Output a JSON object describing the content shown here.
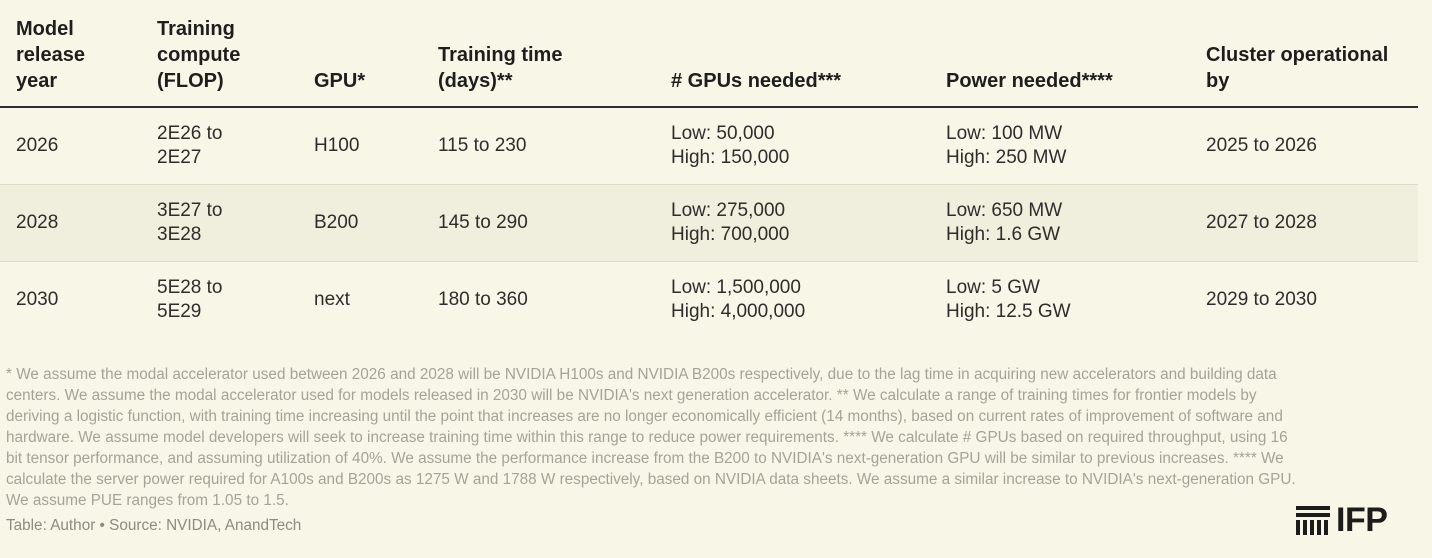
{
  "table": {
    "headers": [
      "Model\nrelease\nyear",
      "Training\ncompute\n(FLOP)",
      "GPU*",
      "Training time\n(days)**",
      "# GPUs needed***",
      "Power needed****",
      "Cluster operational\nby"
    ],
    "rows": [
      [
        "2026",
        "2E26 to\n2E27",
        "H100",
        "115 to 230",
        "Low: 50,000\nHigh: 150,000",
        "Low: 100 MW\nHigh: 250 MW",
        "2025 to 2026"
      ],
      [
        "2028",
        "3E27 to\n3E28",
        "B200",
        "145 to 290",
        "Low: 275,000\nHigh: 700,000",
        "Low: 650 MW\nHigh: 1.6 GW",
        "2027 to 2028"
      ],
      [
        "2030",
        "5E28 to\n5E29",
        "next",
        "180 to 360",
        "Low: 1,500,000\nHigh: 4,000,000",
        "Low: 5 GW\nHigh: 12.5 GW",
        "2029 to 2030"
      ]
    ]
  },
  "footnotes": "* We assume the modal accelerator used between 2026 and 2028 will be NVIDIA H100s and NVIDIA B200s respectively, due to the lag time in acquiring new accelerators and building data centers. We assume the modal accelerator used for models released in 2030 will be NVIDIA's next generation accelerator. ** We calculate a range of training times for frontier models by deriving a logistic function, with training time increasing until the point that increases are no longer economically efficient (14 months), based on current rates of improvement of software and hardware. We assume model developers will seek to increase training time within this range to reduce power requirements. **** We calculate # GPUs based on required throughput, using 16 bit tensor performance, and assuming utilization of 40%. We assume the performance increase from the B200 to NVIDIA's next-generation GPU will be similar to previous increases. **** We calculate the server power required for A100s and B200s as 1275 W and 1788 W respectively, based on NVIDIA data sheets. We assume a similar increase to NVIDIA's next-generation GPU. We assume PUE ranges from 1.05 to 1.5.",
  "source": "Table: Author • Source: NVIDIA, AnandTech",
  "logo": {
    "text": "IFP",
    "icon": "ifp-stripes-icon"
  }
}
